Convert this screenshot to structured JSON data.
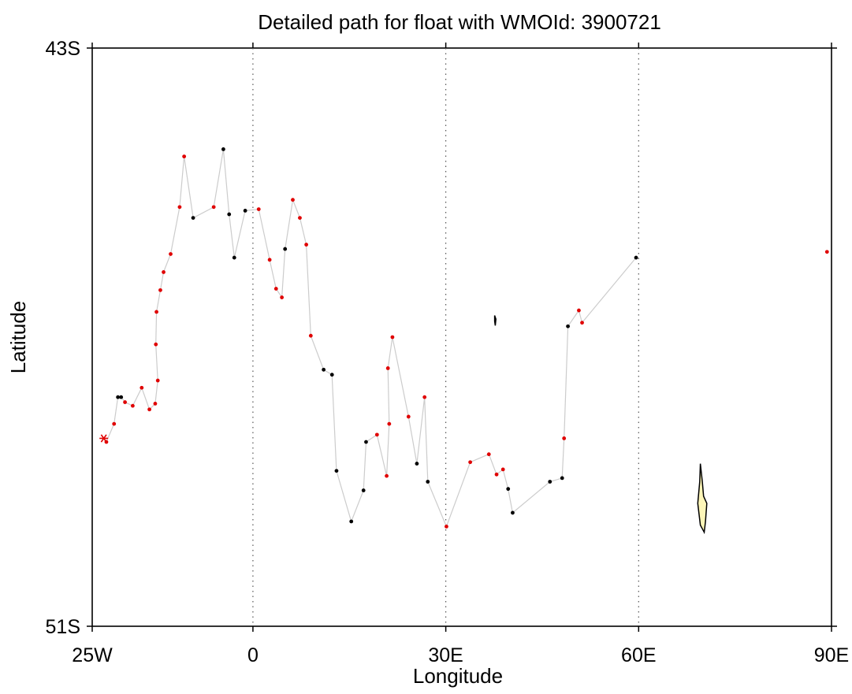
{
  "title": "Detailed path for float with WMOId: 3900721",
  "xlabel": "Longitude",
  "ylabel": "Latitude",
  "x_ticks": [
    {
      "value": -25,
      "label": "25W"
    },
    {
      "value": 0,
      "label": "0"
    },
    {
      "value": 30,
      "label": "30E"
    },
    {
      "value": 60,
      "label": "60E"
    },
    {
      "value": 90,
      "label": "90E"
    }
  ],
  "y_ticks": [
    {
      "value": -43,
      "label": "43S"
    },
    {
      "value": -51,
      "label": "51S"
    }
  ],
  "chart_data": {
    "type": "scatter",
    "title": "Detailed path for float with WMOId: 3900721",
    "xlabel": "Longitude",
    "ylabel": "Latitude",
    "xlim": [
      -25,
      90
    ],
    "ylim": [
      -51,
      -43
    ],
    "grid": "dotted vertical lines at 0, 30E, 60E",
    "start_marker": {
      "lon": -23.2,
      "lat": -48.4,
      "symbol": "asterisk",
      "color": "#e00000"
    },
    "track_color": "#cccccc",
    "profile_points": [
      {
        "lon": -22.8,
        "lat": -48.45,
        "qc": "red"
      },
      {
        "lon": -21.6,
        "lat": -48.2,
        "qc": "red"
      },
      {
        "lon": -21.0,
        "lat": -47.83,
        "qc": "black"
      },
      {
        "lon": -20.5,
        "lat": -47.83,
        "qc": "black"
      },
      {
        "lon": -19.9,
        "lat": -47.9,
        "qc": "red"
      },
      {
        "lon": -18.7,
        "lat": -47.95,
        "qc": "red"
      },
      {
        "lon": -17.3,
        "lat": -47.7,
        "qc": "red"
      },
      {
        "lon": -16.1,
        "lat": -48.0,
        "qc": "red"
      },
      {
        "lon": -15.2,
        "lat": -47.92,
        "qc": "red"
      },
      {
        "lon": -14.8,
        "lat": -47.6,
        "qc": "red"
      },
      {
        "lon": -15.1,
        "lat": -47.1,
        "qc": "red"
      },
      {
        "lon": -15.0,
        "lat": -46.65,
        "qc": "red"
      },
      {
        "lon": -14.4,
        "lat": -46.35,
        "qc": "red"
      },
      {
        "lon": -13.9,
        "lat": -46.1,
        "qc": "red"
      },
      {
        "lon": -12.8,
        "lat": -45.85,
        "qc": "red"
      },
      {
        "lon": -11.4,
        "lat": -45.2,
        "qc": "red"
      },
      {
        "lon": -10.7,
        "lat": -44.5,
        "qc": "red"
      },
      {
        "lon": -9.3,
        "lat": -45.35,
        "qc": "black"
      },
      {
        "lon": -6.1,
        "lat": -45.2,
        "qc": "red"
      },
      {
        "lon": -4.6,
        "lat": -44.4,
        "qc": "black"
      },
      {
        "lon": -3.7,
        "lat": -45.3,
        "qc": "black"
      },
      {
        "lon": -2.9,
        "lat": -45.9,
        "qc": "black"
      },
      {
        "lon": -1.2,
        "lat": -45.25,
        "qc": "black"
      },
      {
        "lon": 0.9,
        "lat": -45.23,
        "qc": "red"
      },
      {
        "lon": 2.6,
        "lat": -45.93,
        "qc": "red"
      },
      {
        "lon": 3.6,
        "lat": -46.33,
        "qc": "red"
      },
      {
        "lon": 4.5,
        "lat": -46.45,
        "qc": "red"
      },
      {
        "lon": 5.0,
        "lat": -45.78,
        "qc": "black"
      },
      {
        "lon": 6.2,
        "lat": -45.1,
        "qc": "red"
      },
      {
        "lon": 7.3,
        "lat": -45.35,
        "qc": "red"
      },
      {
        "lon": 8.3,
        "lat": -45.72,
        "qc": "red"
      },
      {
        "lon": 9.0,
        "lat": -46.98,
        "qc": "red"
      },
      {
        "lon": 11.0,
        "lat": -47.45,
        "qc": "black"
      },
      {
        "lon": 12.3,
        "lat": -47.52,
        "qc": "black"
      },
      {
        "lon": 13.0,
        "lat": -48.85,
        "qc": "black"
      },
      {
        "lon": 15.3,
        "lat": -49.55,
        "qc": "black"
      },
      {
        "lon": 17.2,
        "lat": -49.12,
        "qc": "black"
      },
      {
        "lon": 17.6,
        "lat": -48.45,
        "qc": "black"
      },
      {
        "lon": 19.3,
        "lat": -48.35,
        "qc": "red"
      },
      {
        "lon": 20.8,
        "lat": -48.92,
        "qc": "red"
      },
      {
        "lon": 21.2,
        "lat": -48.2,
        "qc": "red"
      },
      {
        "lon": 21.0,
        "lat": -47.43,
        "qc": "red"
      },
      {
        "lon": 21.7,
        "lat": -47.0,
        "qc": "red"
      },
      {
        "lon": 24.2,
        "lat": -48.1,
        "qc": "red"
      },
      {
        "lon": 25.5,
        "lat": -48.75,
        "qc": "black"
      },
      {
        "lon": 26.7,
        "lat": -47.83,
        "qc": "red"
      },
      {
        "lon": 27.2,
        "lat": -49.0,
        "qc": "black"
      },
      {
        "lon": 30.1,
        "lat": -49.62,
        "qc": "red"
      },
      {
        "lon": 33.8,
        "lat": -48.73,
        "qc": "red"
      },
      {
        "lon": 36.7,
        "lat": -48.62,
        "qc": "red"
      },
      {
        "lon": 37.9,
        "lat": -48.9,
        "qc": "red"
      },
      {
        "lon": 38.9,
        "lat": -48.83,
        "qc": "red"
      },
      {
        "lon": 39.7,
        "lat": -49.1,
        "qc": "black"
      },
      {
        "lon": 40.4,
        "lat": -49.43,
        "qc": "black"
      },
      {
        "lon": 46.2,
        "lat": -49.0,
        "qc": "black"
      },
      {
        "lon": 48.1,
        "lat": -48.95,
        "qc": "black"
      },
      {
        "lon": 48.4,
        "lat": -48.4,
        "qc": "red"
      },
      {
        "lon": 49.0,
        "lat": -46.85,
        "qc": "black"
      },
      {
        "lon": 50.7,
        "lat": -46.63,
        "qc": "red"
      },
      {
        "lon": 51.2,
        "lat": -46.8,
        "qc": "red"
      },
      {
        "lon": 59.6,
        "lat": -45.9,
        "qc": "black"
      },
      {
        "lon": 89.3,
        "lat": -45.82,
        "qc": "red"
      }
    ],
    "islands": [
      {
        "name": "",
        "outline": [
          [
            37.6,
            -46.7
          ],
          [
            37.8,
            -46.75
          ],
          [
            37.7,
            -46.84
          ],
          [
            37.6,
            -46.78
          ]
        ]
      },
      {
        "name": "",
        "outline": [
          [
            69.6,
            -48.75
          ],
          [
            69.9,
            -49.0
          ],
          [
            70.1,
            -49.2
          ],
          [
            70.6,
            -49.3
          ],
          [
            70.4,
            -49.55
          ],
          [
            70.2,
            -49.7
          ],
          [
            69.6,
            -49.6
          ],
          [
            69.2,
            -49.3
          ],
          [
            69.5,
            -49.0
          ]
        ]
      }
    ]
  }
}
